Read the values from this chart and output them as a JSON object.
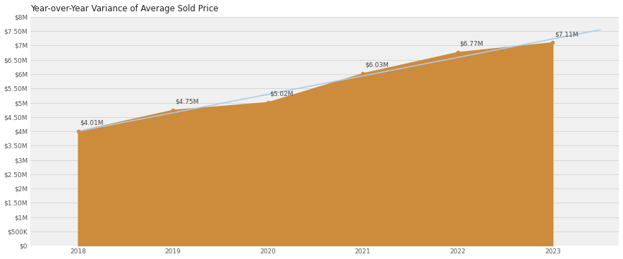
{
  "title": "Year-over-Year Variance of Average Sold Price",
  "years": [
    2018,
    2019,
    2020,
    2021,
    2022,
    2023
  ],
  "values": [
    4010000,
    4750000,
    5020000,
    6030000,
    6770000,
    7110000
  ],
  "labels": [
    "$4.01M",
    "$4.75M",
    "$5.02M",
    "$6.03M",
    "$6.77M",
    "$7.11M"
  ],
  "area_color": "#CD8B3C",
  "line_color": "#aaccee",
  "marker_color": "#CD8B3C",
  "background_color": "#f0f0f0",
  "plot_bg_color": "#f0f0f0",
  "outer_bg_color": "#ffffff",
  "grid_color": "#d8d8d8",
  "title_fontsize": 8.5,
  "label_fontsize": 6.5,
  "tick_fontsize": 6.5,
  "ylim": [
    0,
    8000000
  ],
  "yticks": [
    0,
    500000,
    1000000,
    1500000,
    2000000,
    2500000,
    3000000,
    3500000,
    4000000,
    4500000,
    5000000,
    5500000,
    6000000,
    6500000,
    7000000,
    7500000,
    8000000
  ],
  "ytick_labels": [
    "$0",
    "$500K",
    "$1M",
    "$1.50M",
    "$2M",
    "$2.50M",
    "$3M",
    "$3.50M",
    "$4M",
    "$4.50M",
    "$5M",
    "$5.50M",
    "$6M",
    "$6.50M",
    "$7M",
    "$7.50M",
    "$8M"
  ]
}
